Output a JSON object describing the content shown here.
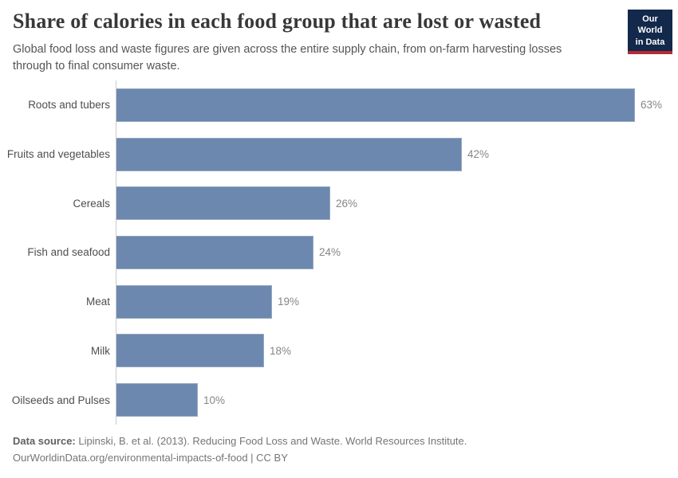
{
  "header": {
    "title": "Share of calories in each food group that are lost or wasted",
    "subtitle": "Global food loss and waste figures are given across the entire supply chain, from on-farm harvesting losses through to final consumer waste.",
    "logo": {
      "line1": "Our World",
      "line2": "in Data",
      "bg_color": "#13294b",
      "stripe_color": "#b62b33"
    }
  },
  "chart_data": {
    "type": "bar",
    "orientation": "horizontal",
    "title": "Share of calories in each food group that are lost or wasted",
    "categories": [
      "Roots and tubers",
      "Fruits and vegetables",
      "Cereals",
      "Fish and seafood",
      "Meat",
      "Milk",
      "Oilseeds and Pulses"
    ],
    "values": [
      63,
      42,
      26,
      24,
      19,
      18,
      10
    ],
    "value_labels": [
      "63%",
      "42%",
      "26%",
      "24%",
      "19%",
      "18%",
      "10%"
    ],
    "unit": "%",
    "xlim": [
      0,
      63
    ],
    "bar_color": "#6c88ae",
    "grid": false,
    "legend": "none",
    "pixels_per_unit": 10.333
  },
  "footer": {
    "source_label": "Data source:",
    "source_text": " Lipinski, B. et al. (2013). Reducing Food Loss and Waste. World Resources Institute.",
    "link_line": "OurWorldinData.org/environmental-impacts-of-food | CC BY"
  }
}
